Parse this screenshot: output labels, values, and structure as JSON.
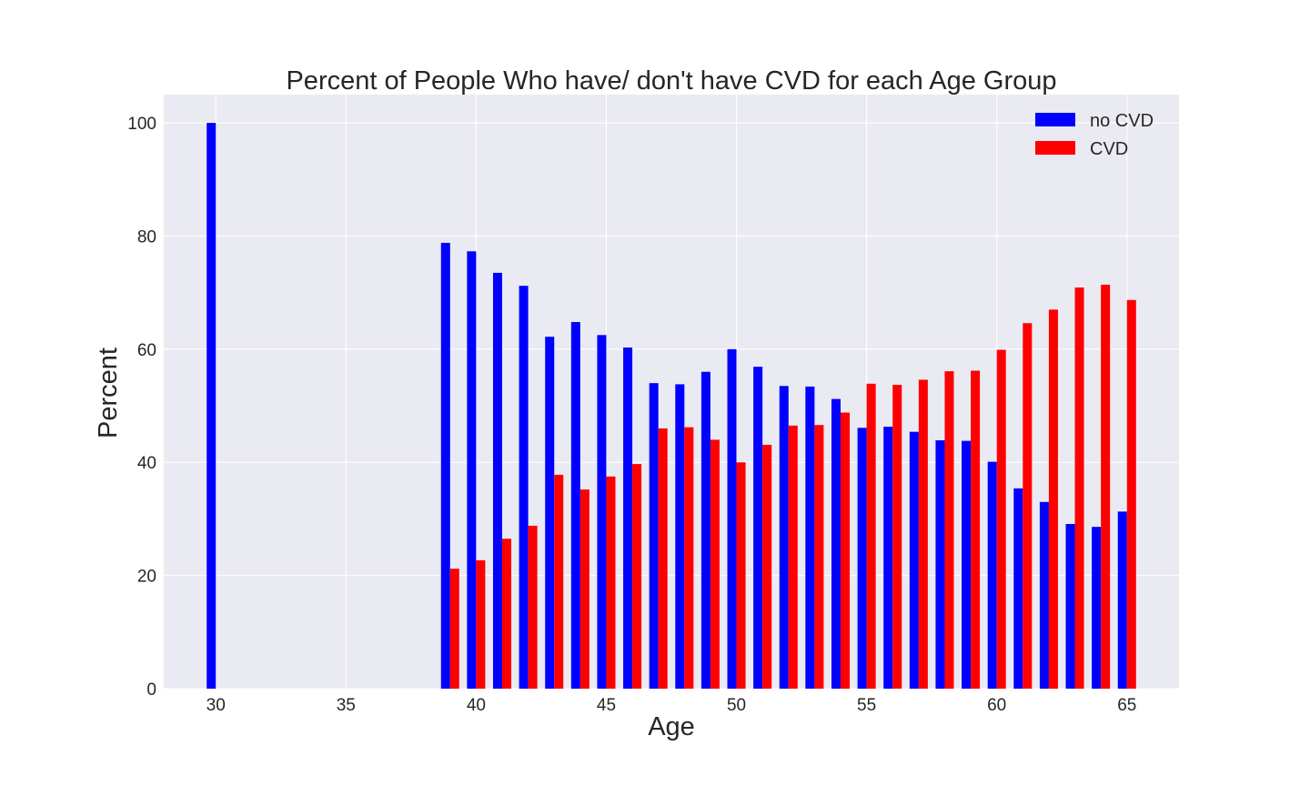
{
  "chart_data": {
    "type": "bar",
    "title": "Percent of People Who have/ don't have CVD for each Age Group",
    "xlabel": "Age",
    "ylabel": "Percent",
    "xlim": [
      28,
      67
    ],
    "ylim": [
      0,
      105
    ],
    "xticks": [
      30,
      35,
      40,
      45,
      50,
      55,
      60,
      65
    ],
    "yticks": [
      0,
      20,
      40,
      60,
      80,
      100
    ],
    "grid": true,
    "legend_position": "top-right",
    "background": "#eaeaf2",
    "x": [
      30,
      39,
      40,
      41,
      42,
      43,
      44,
      45,
      46,
      47,
      48,
      49,
      50,
      51,
      52,
      53,
      54,
      55,
      56,
      57,
      58,
      59,
      60,
      61,
      62,
      63,
      64,
      65
    ],
    "series": [
      {
        "name": "no CVD",
        "color": "#0000ff",
        "values": [
          100,
          78.8,
          77.3,
          73.5,
          71.2,
          62.2,
          64.8,
          62.5,
          60.3,
          54.0,
          53.8,
          56.0,
          60.0,
          56.9,
          53.5,
          53.4,
          51.2,
          46.1,
          46.3,
          45.4,
          43.9,
          43.8,
          40.1,
          35.4,
          33.0,
          29.1,
          28.6,
          31.3
        ]
      },
      {
        "name": "CVD",
        "color": "#ff0000",
        "values": [
          0,
          21.2,
          22.7,
          26.5,
          28.8,
          37.8,
          35.2,
          37.5,
          39.7,
          46.0,
          46.2,
          44.0,
          40.0,
          43.1,
          46.5,
          46.6,
          48.8,
          53.9,
          53.7,
          54.6,
          56.1,
          56.2,
          59.9,
          64.6,
          67.0,
          70.9,
          71.4,
          68.7
        ]
      }
    ]
  }
}
